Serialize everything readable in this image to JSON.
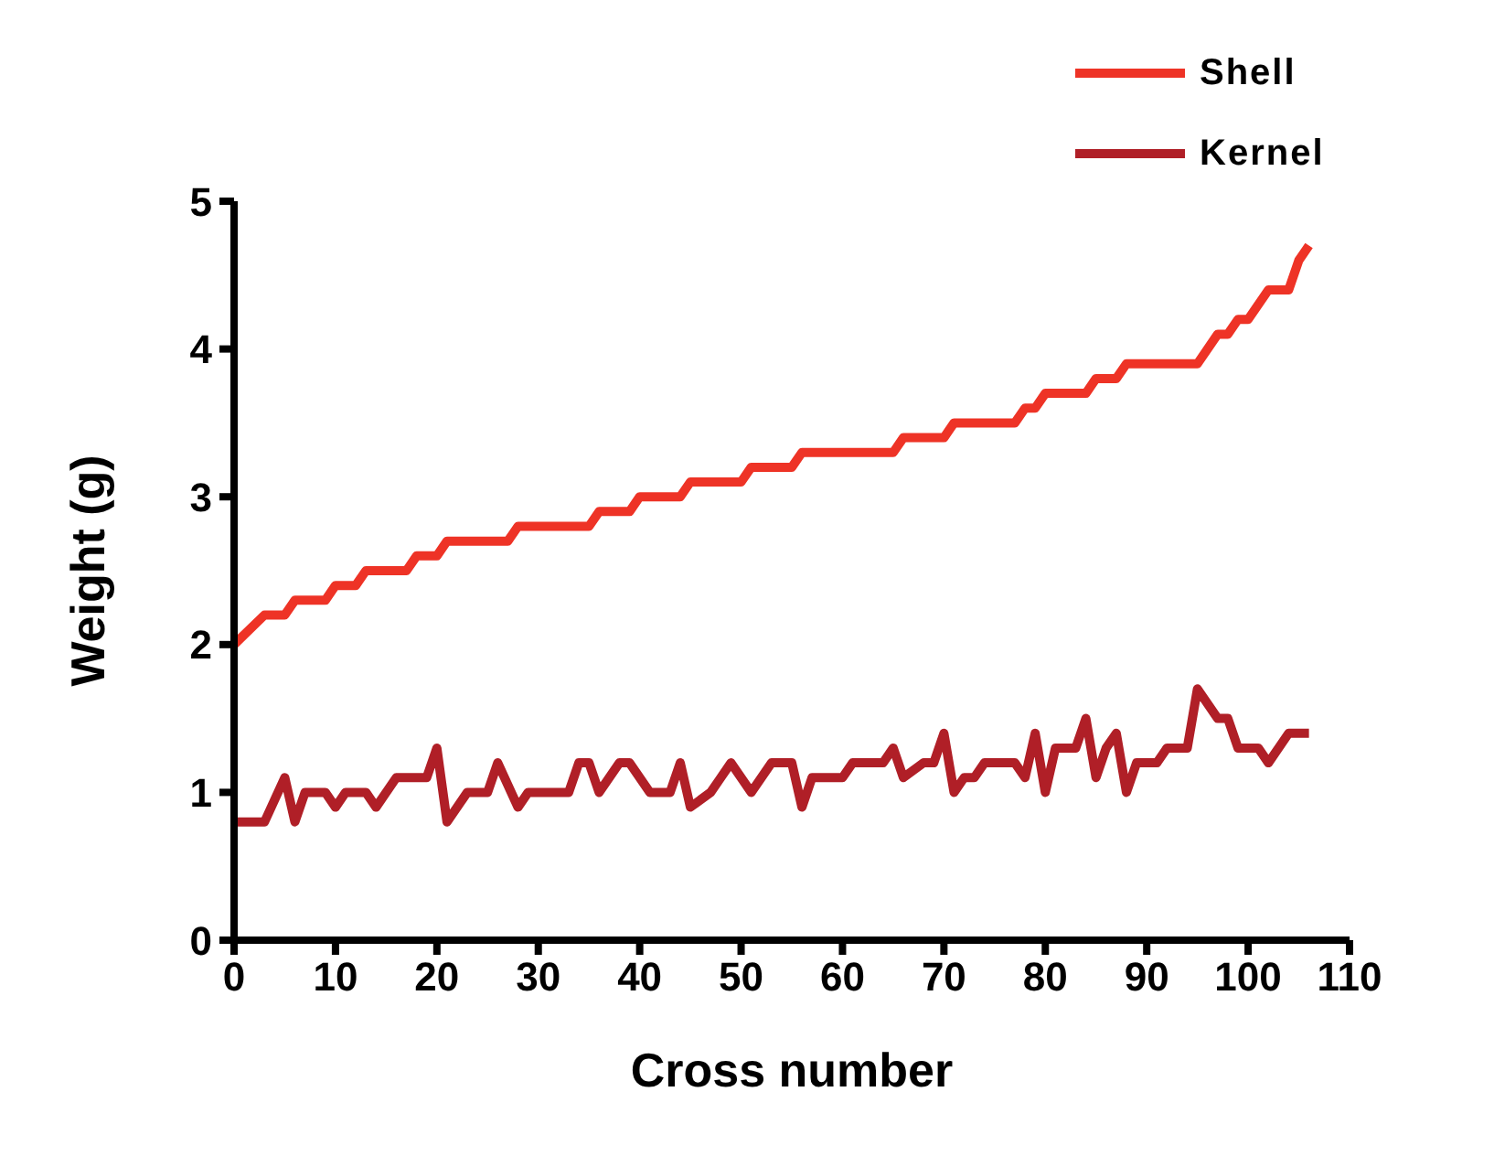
{
  "chart_data": {
    "type": "line",
    "xlabel": "Cross number",
    "ylabel": "Weight (g)",
    "xlim": [
      0,
      110
    ],
    "xticks": [
      0,
      10,
      20,
      30,
      40,
      50,
      60,
      70,
      80,
      90,
      100,
      110
    ],
    "ylim": [
      0,
      5
    ],
    "yticks": [
      0,
      1,
      2,
      3,
      4,
      5
    ],
    "grid": false,
    "legend": "top right",
    "marker": "none",
    "line_style": "solid",
    "series": [
      {
        "name": "Shell",
        "color": "#ee3326",
        "x": [
          0,
          3,
          5,
          6,
          9,
          10,
          12,
          13,
          17,
          18,
          20,
          21,
          27,
          28,
          35,
          36,
          39,
          40,
          44,
          45,
          50,
          51,
          55,
          56,
          65,
          66,
          70,
          71,
          77,
          78,
          79,
          80,
          84,
          85,
          87,
          88,
          95,
          97,
          98,
          99,
          100,
          102,
          104,
          105,
          106
        ],
        "values": [
          2.0,
          2.2,
          2.2,
          2.3,
          2.3,
          2.4,
          2.4,
          2.5,
          2.5,
          2.6,
          2.6,
          2.7,
          2.7,
          2.8,
          2.8,
          2.9,
          2.9,
          3.0,
          3.0,
          3.1,
          3.1,
          3.2,
          3.2,
          3.3,
          3.3,
          3.4,
          3.4,
          3.5,
          3.5,
          3.6,
          3.6,
          3.7,
          3.7,
          3.8,
          3.8,
          3.9,
          3.9,
          4.1,
          4.1,
          4.2,
          4.2,
          4.4,
          4.4,
          4.6,
          4.7
        ]
      },
      {
        "name": "Kernel",
        "color": "#b01f27",
        "x": [
          0,
          3,
          5,
          6,
          7,
          9,
          10,
          11,
          13,
          14,
          16,
          19,
          20,
          21,
          23,
          25,
          26,
          28,
          29,
          33,
          34,
          35,
          36,
          38,
          39,
          41,
          43,
          44,
          45,
          47,
          48,
          49,
          51,
          53,
          55,
          56,
          57,
          60,
          61,
          64,
          65,
          66,
          68,
          69,
          70,
          71,
          72,
          73,
          74,
          77,
          78,
          79,
          80,
          81,
          83,
          84,
          85,
          86,
          87,
          88,
          89,
          91,
          92,
          94,
          95,
          97,
          98,
          99,
          101,
          102,
          104,
          106
        ],
        "values": [
          0.8,
          0.8,
          1.1,
          0.8,
          1.0,
          1.0,
          0.9,
          1.0,
          1.0,
          0.9,
          1.1,
          1.1,
          1.3,
          0.8,
          1.0,
          1.0,
          1.2,
          0.9,
          1.0,
          1.0,
          1.2,
          1.2,
          1.0,
          1.2,
          1.2,
          1.0,
          1.0,
          1.2,
          0.9,
          1.0,
          1.1,
          1.2,
          1.0,
          1.2,
          1.2,
          0.9,
          1.1,
          1.1,
          1.2,
          1.2,
          1.3,
          1.1,
          1.2,
          1.2,
          1.4,
          1.0,
          1.1,
          1.1,
          1.2,
          1.2,
          1.1,
          1.4,
          1.0,
          1.3,
          1.3,
          1.5,
          1.1,
          1.3,
          1.4,
          1.0,
          1.2,
          1.2,
          1.3,
          1.3,
          1.7,
          1.5,
          1.5,
          1.3,
          1.3,
          1.2,
          1.4,
          1.4
        ]
      }
    ]
  }
}
